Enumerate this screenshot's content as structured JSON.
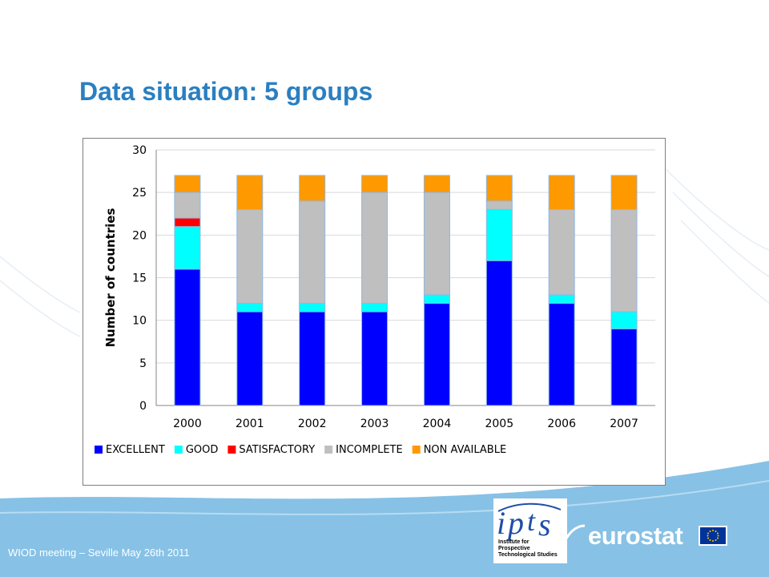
{
  "slide": {
    "title": "Data situation: 5 groups",
    "footer": "WIOD meeting – Seville May 26th 2011"
  },
  "logos": {
    "ipts_text": "Institute for Prospective Technological Studies",
    "eurostat_text": "eurostat"
  },
  "colors": {
    "title": "#2a7fc1",
    "background_band": "#87c1e6"
  },
  "chart_data": {
    "type": "bar",
    "stacked": true,
    "categories": [
      "2000",
      "2001",
      "2002",
      "2003",
      "2004",
      "2005",
      "2006",
      "2007"
    ],
    "ylabel": "Number of countries",
    "xlabel": "",
    "ylim": [
      0,
      30
    ],
    "yticks": [
      0,
      5,
      10,
      15,
      20,
      25,
      30
    ],
    "grid": true,
    "legend_position": "bottom",
    "series": [
      {
        "name": "EXCELLENT",
        "color": "#0000ff",
        "values": [
          16,
          11,
          11,
          11,
          12,
          17,
          12,
          9
        ]
      },
      {
        "name": "GOOD",
        "color": "#00ffff",
        "values": [
          5,
          1,
          1,
          1,
          1,
          6,
          1,
          2
        ]
      },
      {
        "name": "SATISFACTORY",
        "color": "#ff0000",
        "values": [
          1,
          0,
          0,
          0,
          0,
          0,
          0,
          0
        ]
      },
      {
        "name": "INCOMPLETE",
        "color": "#bfbfbf",
        "values": [
          3,
          11,
          12,
          13,
          12,
          1,
          10,
          12
        ]
      },
      {
        "name": "NON AVAILABLE",
        "color": "#ff9900",
        "values": [
          2,
          4,
          3,
          2,
          2,
          3,
          4,
          4
        ]
      }
    ]
  }
}
